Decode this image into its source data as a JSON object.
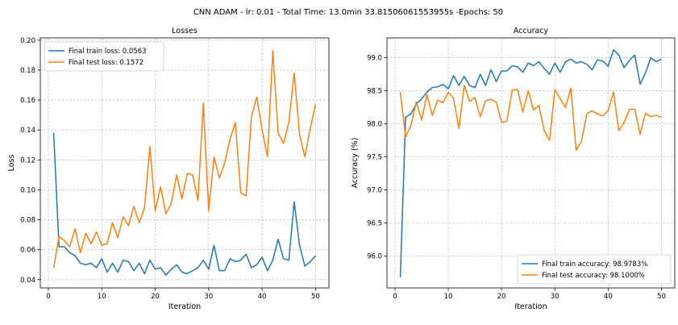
{
  "figure_title": "CNN ADAM - lr: 0.01 - Total Time: 13.0min 33.81506061553955s -Epochs: 50",
  "chart_data": [
    {
      "type": "line",
      "title": "Losses",
      "xlabel": "Iteration",
      "ylabel": "Loss",
      "xlim": [
        -1.5,
        52.5
      ],
      "ylim": [
        0.0345,
        0.2015
      ],
      "xticks": [
        0,
        10,
        20,
        30,
        40,
        50
      ],
      "yticks": [
        0.04,
        0.06,
        0.08,
        0.1,
        0.12,
        0.14,
        0.16,
        0.18,
        0.2
      ],
      "ytick_labels": [
        "0.04",
        "0.06",
        "0.08",
        "0.10",
        "0.12",
        "0.14",
        "0.16",
        "0.18",
        "0.20"
      ],
      "grid": true,
      "legend_position": "upper-left",
      "series": [
        {
          "name": "Final train loss: 0.0563",
          "color": "#1f77b4",
          "x": [
            1,
            2,
            3,
            4,
            5,
            6,
            7,
            8,
            9,
            10,
            11,
            12,
            13,
            14,
            15,
            16,
            17,
            18,
            19,
            20,
            21,
            22,
            23,
            24,
            25,
            26,
            27,
            28,
            29,
            30,
            31,
            32,
            33,
            34,
            35,
            36,
            37,
            38,
            39,
            40,
            41,
            42,
            43,
            44,
            45,
            46,
            47,
            48,
            49,
            50
          ],
          "y": [
            0.138,
            0.062,
            0.062,
            0.058,
            0.056,
            0.051,
            0.05,
            0.051,
            0.048,
            0.054,
            0.045,
            0.051,
            0.045,
            0.053,
            0.052,
            0.046,
            0.051,
            0.044,
            0.053,
            0.047,
            0.048,
            0.043,
            0.047,
            0.05,
            0.045,
            0.044,
            0.046,
            0.048,
            0.053,
            0.047,
            0.063,
            0.046,
            0.046,
            0.054,
            0.052,
            0.053,
            0.057,
            0.048,
            0.05,
            0.055,
            0.046,
            0.053,
            0.067,
            0.054,
            0.053,
            0.092,
            0.063,
            0.049,
            0.052,
            0.056
          ]
        },
        {
          "name": "Final test loss: 0.1572",
          "color": "#ff7f0e",
          "x": [
            1,
            2,
            3,
            4,
            5,
            6,
            7,
            8,
            9,
            10,
            11,
            12,
            13,
            14,
            15,
            16,
            17,
            18,
            19,
            20,
            21,
            22,
            23,
            24,
            25,
            26,
            27,
            28,
            29,
            30,
            31,
            32,
            33,
            34,
            35,
            36,
            37,
            38,
            39,
            40,
            41,
            42,
            43,
            44,
            45,
            46,
            47,
            48,
            49,
            50
          ],
          "y": [
            0.048,
            0.069,
            0.066,
            0.062,
            0.074,
            0.058,
            0.071,
            0.064,
            0.072,
            0.063,
            0.064,
            0.078,
            0.068,
            0.082,
            0.076,
            0.089,
            0.078,
            0.088,
            0.129,
            0.086,
            0.102,
            0.084,
            0.091,
            0.11,
            0.094,
            0.111,
            0.11,
            0.093,
            0.158,
            0.086,
            0.122,
            0.108,
            0.118,
            0.134,
            0.145,
            0.098,
            0.096,
            0.149,
            0.162,
            0.14,
            0.122,
            0.193,
            0.138,
            0.131,
            0.145,
            0.178,
            0.137,
            0.122,
            0.141,
            0.157
          ]
        }
      ]
    },
    {
      "type": "line",
      "title": "Accuracy",
      "xlabel": "Iteration",
      "ylabel": "Accuracy (%)",
      "xlim": [
        -1.5,
        52.5
      ],
      "ylim": [
        95.52,
        99.3
      ],
      "xticks": [
        0,
        10,
        20,
        30,
        40,
        50
      ],
      "yticks": [
        96.0,
        96.5,
        97.0,
        97.5,
        98.0,
        98.5,
        99.0
      ],
      "ytick_labels": [
        "96.0",
        "96.5",
        "97.0",
        "97.5",
        "98.0",
        "98.5",
        "99.0"
      ],
      "grid": true,
      "legend_position": "lower-right",
      "series": [
        {
          "name": "Final train accuracy: 98.9783%",
          "color": "#1f77b4",
          "x": [
            1,
            2,
            3,
            4,
            5,
            6,
            7,
            8,
            9,
            10,
            11,
            12,
            13,
            14,
            15,
            16,
            17,
            18,
            19,
            20,
            21,
            22,
            23,
            24,
            25,
            26,
            27,
            28,
            29,
            30,
            31,
            32,
            33,
            34,
            35,
            36,
            37,
            38,
            39,
            40,
            41,
            42,
            43,
            44,
            45,
            46,
            47,
            48,
            49,
            50
          ],
          "y": [
            95.68,
            98.1,
            98.15,
            98.3,
            98.38,
            98.48,
            98.55,
            98.56,
            98.6,
            98.53,
            98.73,
            98.58,
            98.72,
            98.58,
            98.55,
            98.75,
            98.58,
            98.82,
            98.64,
            98.8,
            98.8,
            98.88,
            98.86,
            98.78,
            98.92,
            98.88,
            98.94,
            98.84,
            98.75,
            98.92,
            98.78,
            98.94,
            98.98,
            98.92,
            98.94,
            98.9,
            98.82,
            98.97,
            98.95,
            98.87,
            99.12,
            99.04,
            98.85,
            98.96,
            99.04,
            98.6,
            98.77,
            99.0,
            98.94,
            98.98
          ]
        },
        {
          "name": "Final test accuracy: 98.1000%",
          "color": "#ff7f0e",
          "x": [
            1,
            2,
            3,
            4,
            5,
            6,
            7,
            8,
            9,
            10,
            11,
            12,
            13,
            14,
            15,
            16,
            17,
            18,
            19,
            20,
            21,
            22,
            23,
            24,
            25,
            26,
            27,
            28,
            29,
            30,
            31,
            32,
            33,
            34,
            35,
            36,
            37,
            38,
            39,
            40,
            41,
            42,
            43,
            44,
            45,
            46,
            47,
            48,
            49,
            50
          ],
          "y": [
            98.48,
            97.8,
            97.98,
            98.33,
            98.06,
            98.44,
            98.13,
            98.36,
            98.32,
            98.48,
            98.38,
            97.93,
            98.58,
            98.34,
            98.4,
            98.11,
            98.35,
            98.37,
            98.33,
            98.02,
            98.04,
            98.51,
            98.52,
            98.18,
            98.5,
            98.21,
            98.28,
            97.9,
            97.75,
            98.52,
            98.38,
            98.25,
            98.54,
            97.6,
            97.74,
            98.15,
            98.2,
            98.15,
            98.12,
            98.2,
            98.48,
            97.9,
            98.02,
            98.22,
            98.22,
            97.84,
            98.16,
            98.11,
            98.13,
            98.1
          ]
        }
      ]
    }
  ]
}
